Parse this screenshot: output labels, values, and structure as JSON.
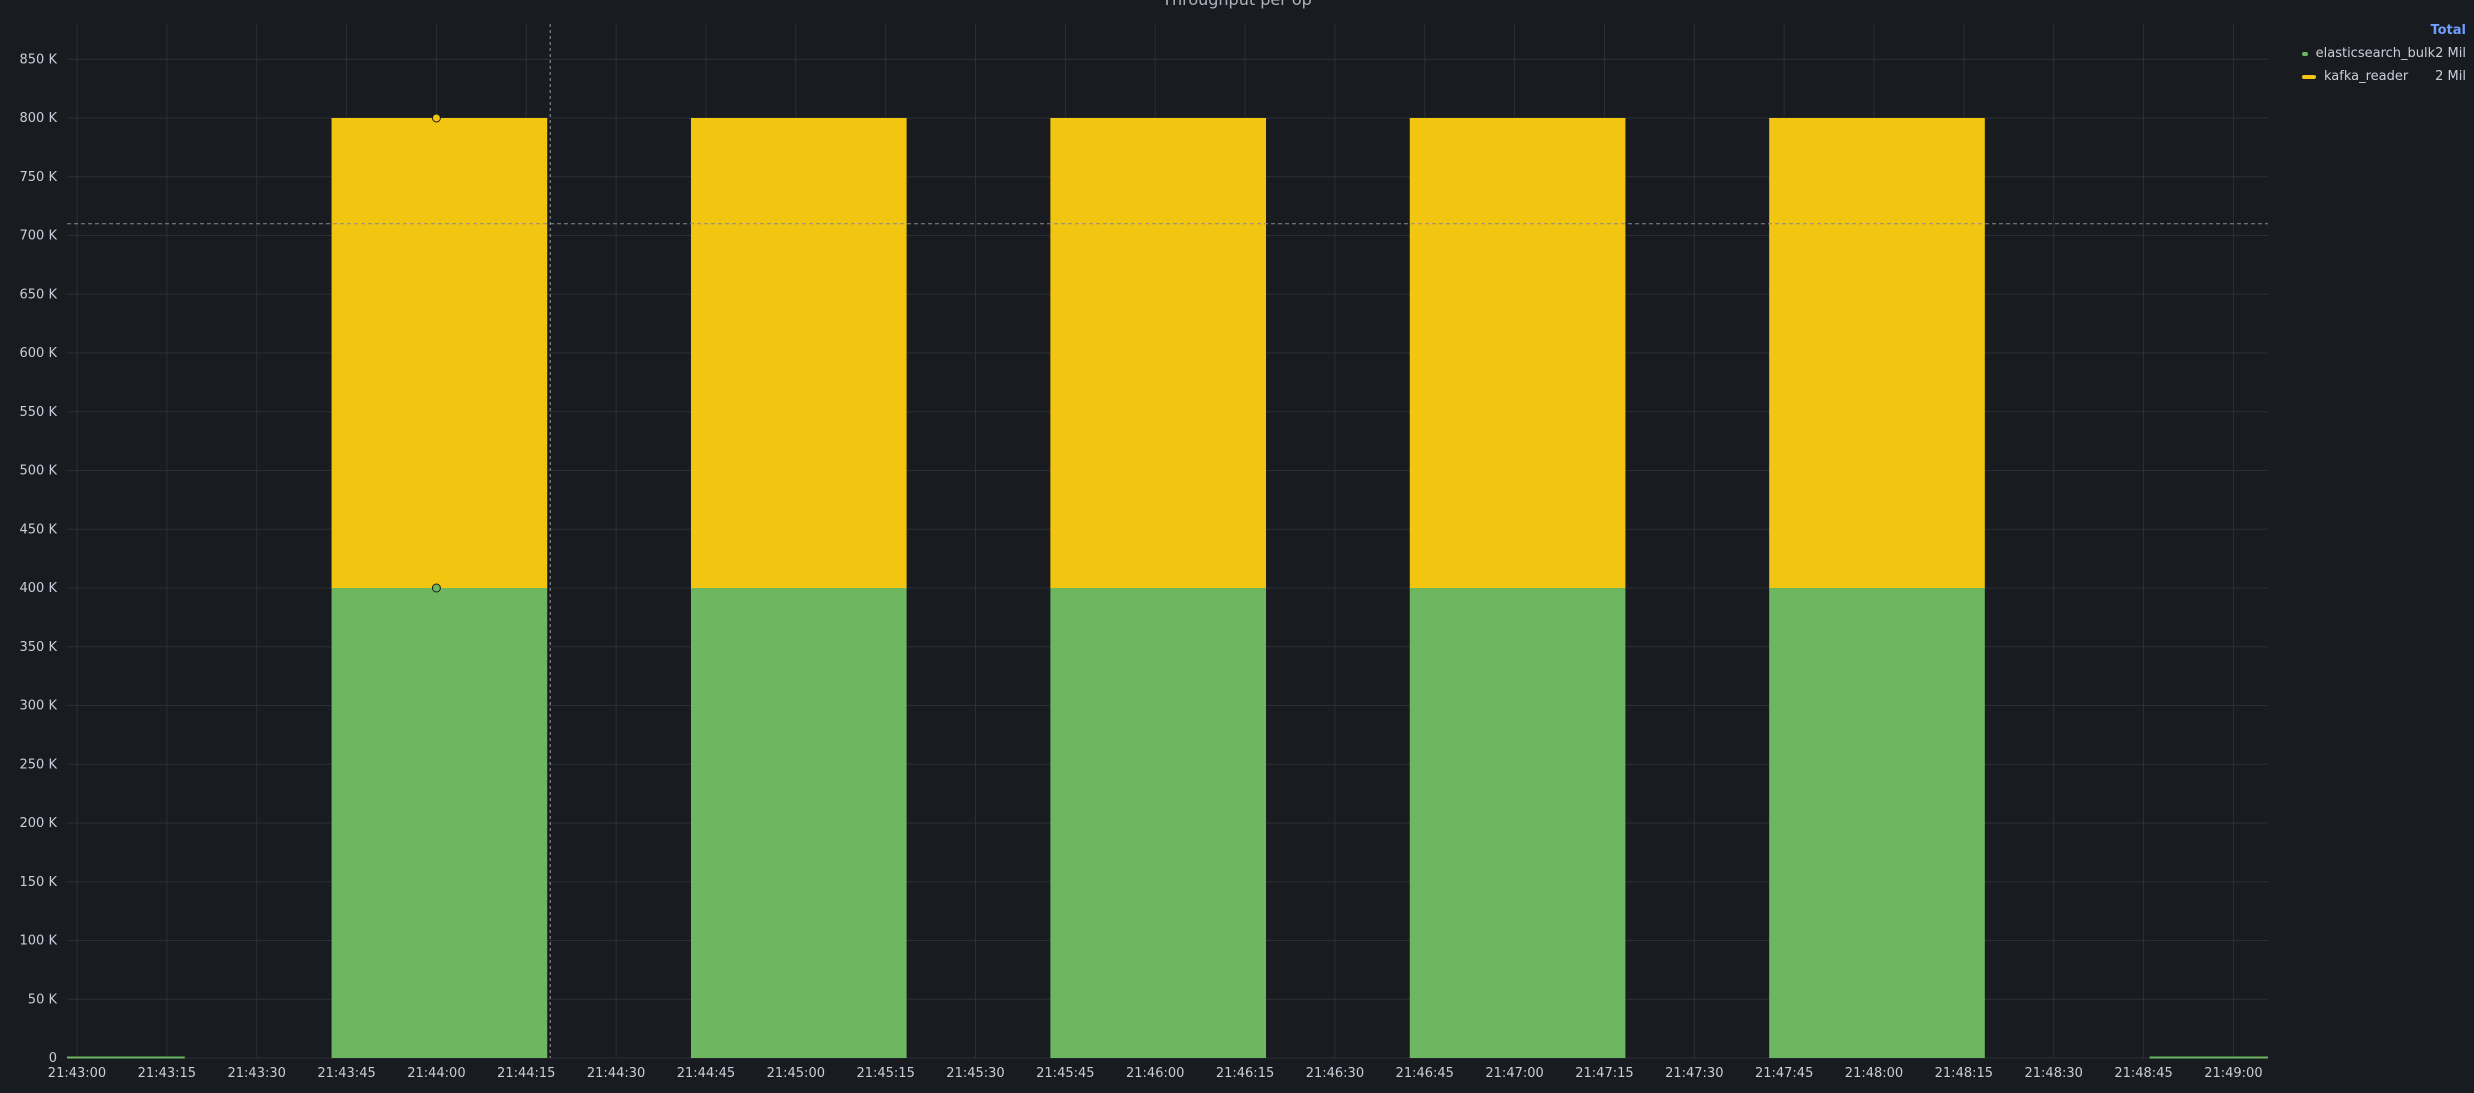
{
  "panel": {
    "title": "Throughput per op"
  },
  "legend": {
    "header": "Total",
    "items": [
      {
        "name": "elasticsearch_bulk",
        "total": "2 Mil",
        "color": "#6cb75f"
      },
      {
        "name": "kafka_reader",
        "total": "2 Mil",
        "color": "#f2c511"
      }
    ]
  },
  "colors": {
    "background": "#181b1f",
    "grid": "#2c2f35",
    "text": "#ccccdc",
    "legend_header": "#6e9fff",
    "threshold": "#8a8a8a"
  },
  "chart_data": {
    "type": "bar",
    "stacked": true,
    "title": "",
    "xlabel": "",
    "ylabel": "",
    "ylim": [
      0,
      880000
    ],
    "y_ticks": [
      0,
      50000,
      100000,
      150000,
      200000,
      250000,
      300000,
      350000,
      400000,
      450000,
      500000,
      550000,
      600000,
      650000,
      700000,
      750000,
      800000,
      850000
    ],
    "y_tick_labels": [
      "0",
      "50 K",
      "100 K",
      "150 K",
      "200 K",
      "250 K",
      "300 K",
      "350 K",
      "400 K",
      "450 K",
      "500 K",
      "550 K",
      "600 K",
      "650 K",
      "700 K",
      "750 K",
      "800 K",
      "850 K"
    ],
    "x_tick_labels": [
      "21:43:00",
      "21:43:15",
      "21:43:30",
      "21:43:45",
      "21:44:00",
      "21:44:15",
      "21:44:30",
      "21:44:45",
      "21:45:00",
      "21:45:15",
      "21:45:30",
      "21:45:45",
      "21:46:00",
      "21:46:15",
      "21:46:30",
      "21:46:45",
      "21:47:00",
      "21:47:15",
      "21:47:30",
      "21:47:45",
      "21:48:00",
      "21:48:15",
      "21:48:30",
      "21:48:45",
      "21:49:00"
    ],
    "x_range_seconds": [
      0,
      370
    ],
    "bar_spans_seconds": [
      [
        42.5,
        78.5
      ],
      [
        102.5,
        138.5
      ],
      [
        162.5,
        198.5
      ],
      [
        222.5,
        258.5
      ],
      [
        282.5,
        318.5
      ]
    ],
    "zero_segments_seconds": [
      [
        -2,
        18
      ],
      [
        346,
        370
      ]
    ],
    "series": [
      {
        "name": "elasticsearch_bulk",
        "color": "#6cb75f",
        "values": [
          400000,
          400000,
          400000,
          400000,
          400000
        ]
      },
      {
        "name": "kafka_reader",
        "color": "#f2c511",
        "values": [
          400000,
          400000,
          400000,
          400000,
          400000
        ]
      }
    ],
    "threshold_line": 710000,
    "crosshair_x_seconds": 79,
    "hover_points": [
      {
        "x_seconds": 60,
        "y": 400000,
        "series": "elasticsearch_bulk"
      },
      {
        "x_seconds": 60,
        "y": 800000,
        "series": "kafka_reader"
      }
    ],
    "grid": true,
    "legend_position": "top-right"
  }
}
